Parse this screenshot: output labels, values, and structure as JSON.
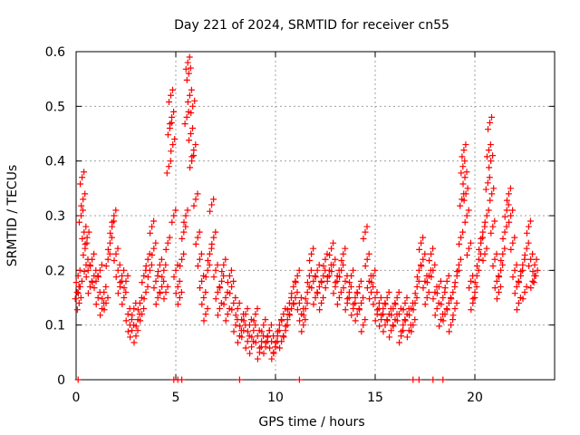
{
  "chart_data": {
    "type": "scatter",
    "title": "Day 221 of 2024, SRMTID for receiver cn55",
    "xlabel": "GPS time / hours",
    "ylabel": "SRMTID / TECUs",
    "xlim": [
      0,
      24
    ],
    "ylim": [
      0,
      0.6
    ],
    "xticks": [
      0,
      5,
      10,
      15,
      20
    ],
    "yticks": [
      0,
      0.1,
      0.2,
      0.3,
      0.4,
      0.5,
      0.6
    ],
    "xtick_labels": [
      "0",
      "5",
      "10",
      "15",
      "20"
    ],
    "ytick_labels": [
      "0",
      "0.1",
      "0.2",
      "0.3",
      "0.4",
      "0.5",
      "0.6"
    ],
    "grid": true,
    "marker": "+",
    "color": "#ff0000",
    "series": [
      {
        "name": "SRMTID",
        "points": [
          [
            0.05,
            0.16
          ],
          [
            0.1,
            0.19
          ],
          [
            0.15,
            0.14
          ],
          [
            0.2,
            0.17
          ],
          [
            0.25,
            0.3
          ],
          [
            0.3,
            0.37
          ],
          [
            0.35,
            0.33
          ],
          [
            0.4,
            0.27
          ],
          [
            0.45,
            0.24
          ],
          [
            0.5,
            0.21
          ],
          [
            0.55,
            0.26
          ],
          [
            0.6,
            0.2
          ],
          [
            0.7,
            0.17
          ],
          [
            0.8,
            0.22
          ],
          [
            0.9,
            0.19
          ],
          [
            1.0,
            0.18
          ],
          [
            1.1,
            0.15
          ],
          [
            1.2,
            0.2
          ],
          [
            1.3,
            0.13
          ],
          [
            1.4,
            0.16
          ],
          [
            1.5,
            0.14
          ],
          [
            1.6,
            0.22
          ],
          [
            1.7,
            0.25
          ],
          [
            1.8,
            0.28
          ],
          [
            1.9,
            0.3
          ],
          [
            2.0,
            0.23
          ],
          [
            2.1,
            0.2
          ],
          [
            2.2,
            0.17
          ],
          [
            2.3,
            0.19
          ],
          [
            2.4,
            0.15
          ],
          [
            2.5,
            0.18
          ],
          [
            2.6,
            0.12
          ],
          [
            2.7,
            0.1
          ],
          [
            2.8,
            0.09
          ],
          [
            2.9,
            0.13
          ],
          [
            3.0,
            0.08
          ],
          [
            3.1,
            0.11
          ],
          [
            3.2,
            0.14
          ],
          [
            3.3,
            0.12
          ],
          [
            3.4,
            0.19
          ],
          [
            3.5,
            0.16
          ],
          [
            3.6,
            0.22
          ],
          [
            3.7,
            0.2
          ],
          [
            3.8,
            0.28
          ],
          [
            3.9,
            0.24
          ],
          [
            4.0,
            0.18
          ],
          [
            4.1,
            0.15
          ],
          [
            4.2,
            0.21
          ],
          [
            4.3,
            0.17
          ],
          [
            4.4,
            0.2
          ],
          [
            4.5,
            0.16
          ],
          [
            4.6,
            0.25
          ],
          [
            4.65,
            0.39
          ],
          [
            4.7,
            0.46
          ],
          [
            4.75,
            0.52
          ],
          [
            4.8,
            0.48
          ],
          [
            4.85,
            0.43
          ],
          [
            4.9,
            0.3
          ],
          [
            5.0,
            0.2
          ],
          [
            5.1,
            0.17
          ],
          [
            5.2,
            0.15
          ],
          [
            5.3,
            0.22
          ],
          [
            5.4,
            0.27
          ],
          [
            5.5,
            0.3
          ],
          [
            5.55,
            0.48
          ],
          [
            5.6,
            0.58
          ],
          [
            5.65,
            0.56
          ],
          [
            5.7,
            0.52
          ],
          [
            5.75,
            0.45
          ],
          [
            5.8,
            0.4
          ],
          [
            5.85,
            0.5
          ],
          [
            5.9,
            0.42
          ],
          [
            6.0,
            0.33
          ],
          [
            6.1,
            0.26
          ],
          [
            6.2,
            0.22
          ],
          [
            6.3,
            0.18
          ],
          [
            6.4,
            0.15
          ],
          [
            6.5,
            0.12
          ],
          [
            6.6,
            0.2
          ],
          [
            6.7,
            0.23
          ],
          [
            6.8,
            0.32
          ],
          [
            6.9,
            0.26
          ],
          [
            7.0,
            0.2
          ],
          [
            7.1,
            0.16
          ],
          [
            7.2,
            0.13
          ],
          [
            7.3,
            0.18
          ],
          [
            7.4,
            0.21
          ],
          [
            7.5,
            0.15
          ],
          [
            7.6,
            0.12
          ],
          [
            7.7,
            0.19
          ],
          [
            7.8,
            0.17
          ],
          [
            7.9,
            0.14
          ],
          [
            8.0,
            0.1
          ],
          [
            8.1,
            0.13
          ],
          [
            8.2,
            0.08
          ],
          [
            8.3,
            0.11
          ],
          [
            8.4,
            0.09
          ],
          [
            8.5,
            0.12
          ],
          [
            8.6,
            0.07
          ],
          [
            8.7,
            0.1
          ],
          [
            8.8,
            0.06
          ],
          [
            8.9,
            0.09
          ],
          [
            9.0,
            0.12
          ],
          [
            9.1,
            0.08
          ],
          [
            9.2,
            0.05
          ],
          [
            9.3,
            0.07
          ],
          [
            9.4,
            0.1
          ],
          [
            9.5,
            0.06
          ],
          [
            9.6,
            0.08
          ],
          [
            9.7,
            0.09
          ],
          [
            9.8,
            0.07
          ],
          [
            9.9,
            0.05
          ],
          [
            10.0,
            0.06
          ],
          [
            10.1,
            0.08
          ],
          [
            10.2,
            0.1
          ],
          [
            10.3,
            0.07
          ],
          [
            10.4,
            0.12
          ],
          [
            10.5,
            0.09
          ],
          [
            10.6,
            0.11
          ],
          [
            10.7,
            0.14
          ],
          [
            10.8,
            0.13
          ],
          [
            10.9,
            0.17
          ],
          [
            11.0,
            0.15
          ],
          [
            11.1,
            0.19
          ],
          [
            11.2,
            0.14
          ],
          [
            11.3,
            0.12
          ],
          [
            11.4,
            0.1
          ],
          [
            11.5,
            0.13
          ],
          [
            11.6,
            0.16
          ],
          [
            11.7,
            0.19
          ],
          [
            11.8,
            0.23
          ],
          [
            11.9,
            0.18
          ],
          [
            12.0,
            0.15
          ],
          [
            12.1,
            0.2
          ],
          [
            12.2,
            0.17
          ],
          [
            12.3,
            0.14
          ],
          [
            12.4,
            0.19
          ],
          [
            12.5,
            0.22
          ],
          [
            12.6,
            0.18
          ],
          [
            12.7,
            0.2
          ],
          [
            12.8,
            0.24
          ],
          [
            12.9,
            0.21
          ],
          [
            13.0,
            0.17
          ],
          [
            13.1,
            0.19
          ],
          [
            13.2,
            0.15
          ],
          [
            13.3,
            0.2
          ],
          [
            13.4,
            0.23
          ],
          [
            13.5,
            0.18
          ],
          [
            13.6,
            0.14
          ],
          [
            13.7,
            0.16
          ],
          [
            13.8,
            0.19
          ],
          [
            13.9,
            0.13
          ],
          [
            14.0,
            0.15
          ],
          [
            14.1,
            0.12
          ],
          [
            14.2,
            0.17
          ],
          [
            14.3,
            0.14
          ],
          [
            14.4,
            0.1
          ],
          [
            14.5,
            0.27
          ],
          [
            14.6,
            0.22
          ],
          [
            14.7,
            0.18
          ],
          [
            14.8,
            0.16
          ],
          [
            14.9,
            0.19
          ],
          [
            15.0,
            0.15
          ],
          [
            15.1,
            0.12
          ],
          [
            15.2,
            0.14
          ],
          [
            15.3,
            0.11
          ],
          [
            15.4,
            0.13
          ],
          [
            15.5,
            0.1
          ],
          [
            15.6,
            0.15
          ],
          [
            15.7,
            0.12
          ],
          [
            15.8,
            0.09
          ],
          [
            15.9,
            0.13
          ],
          [
            16.0,
            0.11
          ],
          [
            16.1,
            0.15
          ],
          [
            16.2,
            0.12
          ],
          [
            16.3,
            0.08
          ],
          [
            16.4,
            0.1
          ],
          [
            16.5,
            0.14
          ],
          [
            16.6,
            0.12
          ],
          [
            16.7,
            0.09
          ],
          [
            16.8,
            0.13
          ],
          [
            16.9,
            0.1
          ],
          [
            17.0,
            0.14
          ],
          [
            17.1,
            0.17
          ],
          [
            17.2,
            0.2
          ],
          [
            17.3,
            0.25
          ],
          [
            17.4,
            0.22
          ],
          [
            17.5,
            0.18
          ],
          [
            17.6,
            0.15
          ],
          [
            17.7,
            0.19
          ],
          [
            17.8,
            0.23
          ],
          [
            17.9,
            0.2
          ],
          [
            18.0,
            0.16
          ],
          [
            18.1,
            0.13
          ],
          [
            18.2,
            0.17
          ],
          [
            18.3,
            0.11
          ],
          [
            18.4,
            0.15
          ],
          [
            18.5,
            0.12
          ],
          [
            18.6,
            0.18
          ],
          [
            18.7,
            0.14
          ],
          [
            18.8,
            0.1
          ],
          [
            18.9,
            0.16
          ],
          [
            19.0,
            0.13
          ],
          [
            19.1,
            0.19
          ],
          [
            19.2,
            0.21
          ],
          [
            19.3,
            0.26
          ],
          [
            19.35,
            0.33
          ],
          [
            19.4,
            0.39
          ],
          [
            19.45,
            0.42
          ],
          [
            19.5,
            0.37
          ],
          [
            19.55,
            0.34
          ],
          [
            19.6,
            0.3
          ],
          [
            19.7,
            0.24
          ],
          [
            19.8,
            0.18
          ],
          [
            19.9,
            0.14
          ],
          [
            20.0,
            0.16
          ],
          [
            20.1,
            0.19
          ],
          [
            20.2,
            0.22
          ],
          [
            20.3,
            0.25
          ],
          [
            20.4,
            0.27
          ],
          [
            20.5,
            0.23
          ],
          [
            20.6,
            0.3
          ],
          [
            20.65,
            0.36
          ],
          [
            20.7,
            0.42
          ],
          [
            20.75,
            0.47
          ],
          [
            20.8,
            0.4
          ],
          [
            20.85,
            0.34
          ],
          [
            20.9,
            0.28
          ],
          [
            21.0,
            0.22
          ],
          [
            21.1,
            0.18
          ],
          [
            21.2,
            0.16
          ],
          [
            21.3,
            0.2
          ],
          [
            21.4,
            0.23
          ],
          [
            21.5,
            0.27
          ],
          [
            21.6,
            0.31
          ],
          [
            21.7,
            0.34
          ],
          [
            21.8,
            0.3
          ],
          [
            21.9,
            0.25
          ],
          [
            22.0,
            0.2
          ],
          [
            22.1,
            0.17
          ],
          [
            22.2,
            0.14
          ],
          [
            22.3,
            0.19
          ],
          [
            22.4,
            0.21
          ],
          [
            22.5,
            0.16
          ],
          [
            22.6,
            0.24
          ],
          [
            22.7,
            0.28
          ],
          [
            22.8,
            0.22
          ],
          [
            22.9,
            0.18
          ],
          [
            23.0,
            0.21
          ],
          [
            23.05,
            0.19
          ]
        ]
      }
    ],
    "zero_markers_x": [
      0.1,
      4.9,
      5.1,
      5.3,
      8.2,
      11.2,
      16.9,
      17.2,
      17.9,
      18.4
    ]
  }
}
